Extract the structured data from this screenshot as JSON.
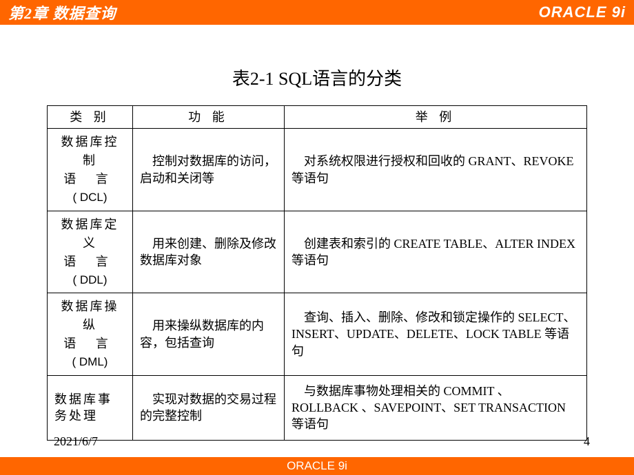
{
  "header": {
    "chapter": "第2章  数据查询",
    "brand": "ORACLE 9i"
  },
  "caption": "表2-1  SQL语言的分类",
  "table": {
    "headers": [
      "类  别",
      "功  能",
      "举  例"
    ],
    "rows": [
      {
        "cat_l1": "数据库控制",
        "cat_l2": "语  言",
        "cat_l3": "( DCL)",
        "func": "控制对数据库的访问，启动和关闭等",
        "ex": "对系统权限进行授权和回收的 GRANT、REVOKE 等语句"
      },
      {
        "cat_l1": "数据库定义",
        "cat_l2": "语  言",
        "cat_l3": "( DDL)",
        "func": "用来创建、删除及修改数据库对象",
        "ex": "创建表和索引的 CREATE TABLE、ALTER INDEX 等语句"
      },
      {
        "cat_l1": "数据库操纵",
        "cat_l2": "语  言",
        "cat_l3": "( DML)",
        "func": "用来操纵数据库的内容，包括查询",
        "ex": "查询、插入、删除、修改和锁定操作的 SELECT、INSERT、UPDATE、DELETE、LOCK TABLE  等语句"
      },
      {
        "cat_plain": "数据库事务处理",
        "func": "实现对数据的交易过程的完整控制",
        "ex": "与数据库事物处理相关的 COMMIT 、 ROLLBACK 、SAVEPOINT、SET TRANSACTION 等语句"
      }
    ]
  },
  "footer": {
    "date": "2021/6/7",
    "page": "4",
    "brand": "ORACLE 9i"
  },
  "colors": {
    "accent": "#ff6600",
    "text": "#000000",
    "header_text": "#ffffff",
    "border": "#000000",
    "background": "#ffffff"
  },
  "typography": {
    "header_fontsize": 22,
    "caption_fontsize": 26,
    "body_fontsize": 18,
    "footer_fontsize": 18
  }
}
